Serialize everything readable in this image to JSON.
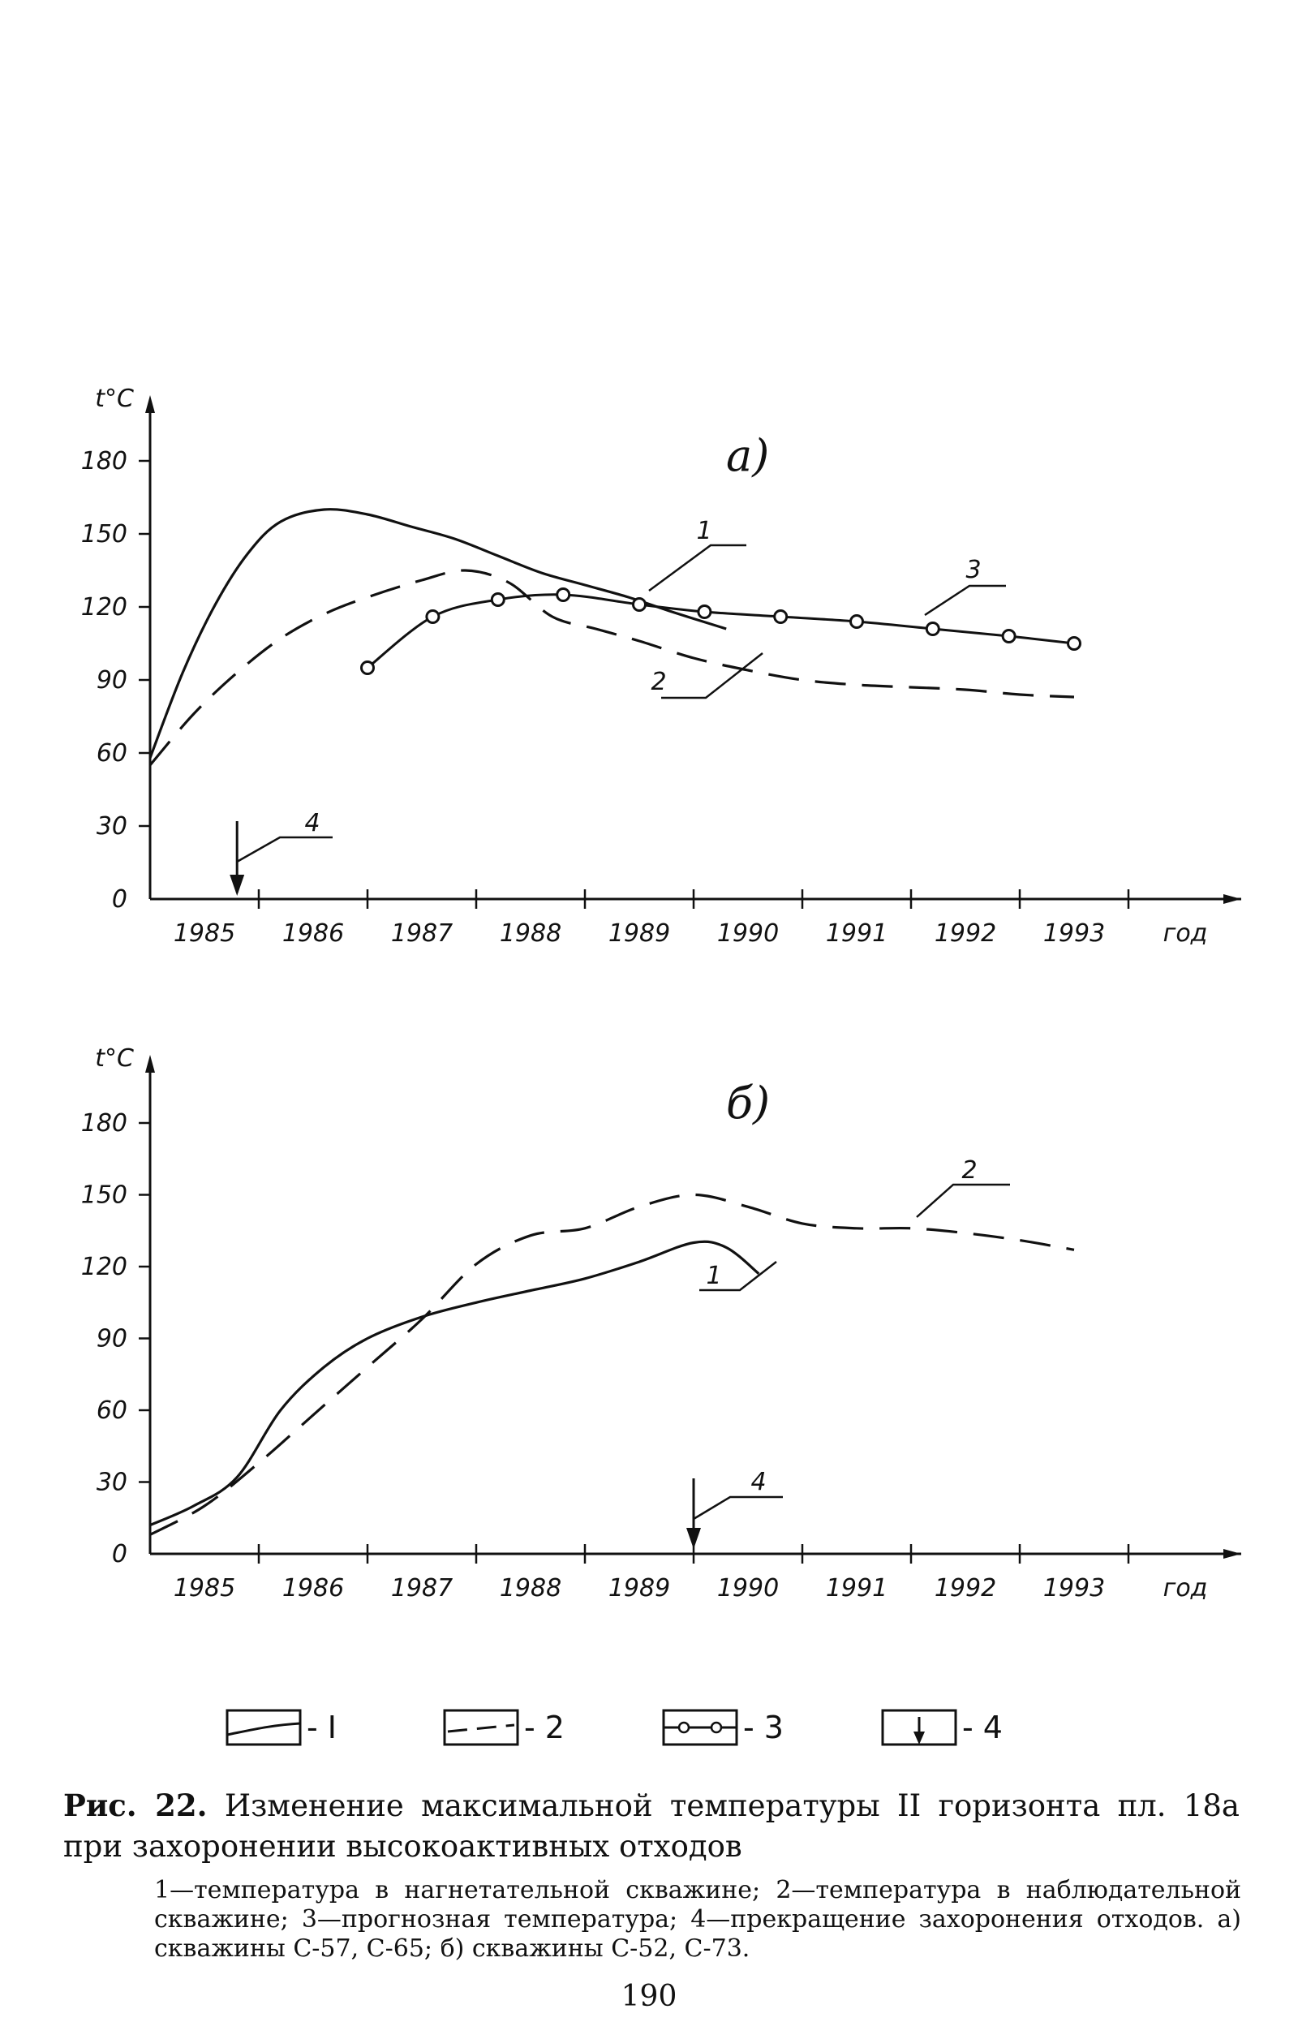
{
  "chart_data": [
    {
      "type": "line",
      "panel_label": "а)",
      "ylabel": "t°C",
      "xlabel": "год",
      "y_ticks": [
        0,
        30,
        60,
        90,
        120,
        150,
        180
      ],
      "x_ticks": [
        "1985",
        "1986",
        "1987",
        "1988",
        "1989",
        "1990",
        "1991",
        "1992",
        "1993"
      ],
      "ylim": [
        0,
        200
      ],
      "x_range": [
        1985,
        1994
      ],
      "series": [
        {
          "name": "1",
          "style": "solid",
          "x": [
            1985.0,
            1985.3,
            1985.6,
            1985.9,
            1986.2,
            1986.6,
            1987.0,
            1987.4,
            1987.8,
            1988.2,
            1988.6,
            1989.0,
            1989.4,
            1989.8,
            1990.3
          ],
          "y": [
            58,
            93,
            121,
            142,
            155,
            160,
            158,
            153,
            148,
            141,
            134,
            129,
            124,
            118,
            111
          ]
        },
        {
          "name": "2",
          "style": "dashed",
          "x": [
            1985.0,
            1985.4,
            1985.8,
            1986.2,
            1986.6,
            1987.0,
            1987.5,
            1987.9,
            1988.3,
            1988.7,
            1989.1,
            1989.5,
            1990.0,
            1990.5,
            1991.0,
            1991.5,
            1992.0,
            1992.5,
            1993.0,
            1993.5
          ],
          "y": [
            55,
            76,
            93,
            107,
            117,
            124,
            131,
            135,
            130,
            116,
            111,
            106,
            99,
            94,
            90,
            88,
            87,
            86,
            84,
            83
          ]
        },
        {
          "name": "3",
          "style": "markers",
          "x": [
            1987.0,
            1987.6,
            1988.2,
            1988.8,
            1989.5,
            1990.1,
            1990.8,
            1991.5,
            1992.2,
            1992.9,
            1993.5
          ],
          "y": [
            95,
            116,
            123,
            125,
            121,
            118,
            116,
            114,
            111,
            108,
            105
          ]
        }
      ],
      "annotations": [
        {
          "label": "4",
          "x": 1985.8,
          "meaning": "stop"
        }
      ]
    },
    {
      "type": "line",
      "panel_label": "б)",
      "ylabel": "t°C",
      "xlabel": "год",
      "y_ticks": [
        0,
        30,
        60,
        90,
        120,
        150,
        180
      ],
      "x_ticks": [
        "1985",
        "1986",
        "1987",
        "1988",
        "1989",
        "1990",
        "1991",
        "1992",
        "1993"
      ],
      "ylim": [
        0,
        200
      ],
      "x_range": [
        1985,
        1994
      ],
      "series": [
        {
          "name": "1",
          "style": "solid",
          "x": [
            1985.0,
            1985.4,
            1985.8,
            1986.2,
            1986.6,
            1987.0,
            1987.5,
            1988.0,
            1988.5,
            1989.0,
            1989.5,
            1990.0,
            1990.3,
            1990.6
          ],
          "y": [
            12,
            20,
            32,
            60,
            78,
            90,
            99,
            105,
            110,
            115,
            122,
            130,
            128,
            117
          ]
        },
        {
          "name": "2",
          "style": "dashed",
          "x": [
            1985.0,
            1985.5,
            1986.0,
            1986.5,
            1987.0,
            1987.5,
            1988.0,
            1988.5,
            1989.0,
            1989.5,
            1990.0,
            1990.5,
            1991.0,
            1991.5,
            1992.0,
            1992.5,
            1993.0,
            1993.5
          ],
          "y": [
            8,
            20,
            38,
            58,
            78,
            98,
            121,
            133,
            136,
            145,
            150,
            145,
            138,
            136,
            136,
            134,
            131,
            127
          ]
        }
      ],
      "annotations": [
        {
          "label": "4",
          "x": 1990.0,
          "meaning": "stop"
        }
      ]
    }
  ],
  "legend": [
    {
      "key": "1",
      "label": "- I"
    },
    {
      "key": "2",
      "label": "- 2"
    },
    {
      "key": "3",
      "label": "- 3"
    },
    {
      "key": "4",
      "label": "- 4"
    }
  ],
  "caption": {
    "figure": "Рис. 22.",
    "text": "Изменение максимальной температуры II горизонта пл. 18а при захоронении высокоактивных отходов",
    "notes": "1—температура в нагнетательной скважине; 2—температура в наблюдательной скважине; 3—прогнозная температура; 4—прекращение захоронения отходов. а) скважины С-57, С-65; б) скважины С-52, С-73."
  },
  "page_number": "190"
}
